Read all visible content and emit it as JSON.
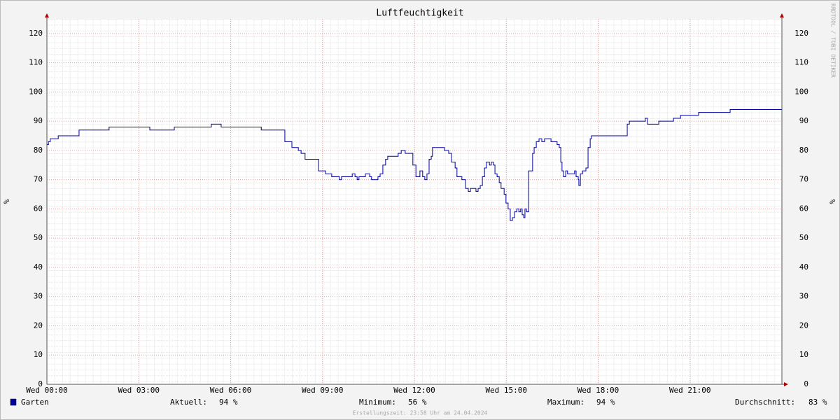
{
  "chart_data": {
    "type": "line",
    "title": "Luftfeuchtigkeit",
    "ylabel": "%",
    "y2label": "%",
    "watermark": "RRDTOOL / TOBI OETIKER",
    "footer": "Erstellungszeit: 23:58 Uhr am 24.04.2024",
    "step": "post",
    "grid": true,
    "xlim": [
      0,
      24
    ],
    "xticks": [
      {
        "value": 0,
        "label": "Wed 00:00"
      },
      {
        "value": 3,
        "label": "Wed 03:00"
      },
      {
        "value": 6,
        "label": "Wed 06:00"
      },
      {
        "value": 9,
        "label": "Wed 09:00"
      },
      {
        "value": 12,
        "label": "Wed 12:00"
      },
      {
        "value": 15,
        "label": "Wed 15:00"
      },
      {
        "value": 18,
        "label": "Wed 18:00"
      },
      {
        "value": 21,
        "label": "Wed 21:00"
      }
    ],
    "ylim": [
      0,
      125
    ],
    "yticks": [
      0,
      10,
      20,
      30,
      40,
      50,
      60,
      70,
      80,
      90,
      100,
      110,
      120
    ],
    "y2lim": [
      0,
      125
    ],
    "y2ticks": [
      0,
      10,
      20,
      30,
      40,
      50,
      60,
      70,
      80,
      90,
      100,
      110,
      120
    ],
    "x": [
      0,
      0.05,
      0.11,
      0.37,
      1.05,
      2.03,
      3.36,
      4.16,
      5.37,
      5.69,
      7.0,
      7.77,
      8.0,
      8.21,
      8.3,
      8.43,
      8.87,
      9.1,
      9.3,
      9.55,
      9.62,
      9.97,
      10.06,
      10.13,
      10.19,
      10.4,
      10.54,
      10.6,
      10.81,
      10.88,
      10.97,
      11.06,
      11.13,
      11.47,
      11.57,
      11.7,
      11.95,
      12.05,
      12.18,
      12.27,
      12.34,
      12.41,
      12.48,
      12.55,
      12.59,
      12.98,
      13.12,
      13.21,
      13.33,
      13.39,
      13.55,
      13.67,
      13.76,
      13.83,
      14.01,
      14.08,
      14.15,
      14.22,
      14.29,
      14.35,
      14.45,
      14.51,
      14.58,
      14.63,
      14.7,
      14.77,
      14.83,
      14.93,
      14.99,
      15.06,
      15.13,
      15.2,
      15.27,
      15.34,
      15.41,
      15.47,
      15.52,
      15.57,
      15.61,
      15.66,
      15.73,
      15.86,
      15.91,
      15.98,
      16.07,
      16.16,
      16.25,
      16.46,
      16.66,
      16.73,
      16.78,
      16.82,
      16.87,
      16.94,
      17.0,
      17.23,
      17.28,
      17.35,
      17.37,
      17.42,
      17.49,
      17.6,
      17.67,
      17.74,
      17.78,
      18.95,
      19.02,
      19.54,
      19.61,
      19.98,
      20.46,
      20.69,
      21.28,
      22.31,
      24
    ],
    "series": [
      {
        "name": "Garten",
        "color": "#00009c",
        "values": [
          82,
          83,
          84,
          85,
          87,
          88,
          87,
          88,
          89,
          88,
          87,
          83,
          81,
          80,
          79,
          77,
          73,
          72,
          71,
          70,
          71,
          72,
          71,
          70,
          71,
          72,
          71,
          70,
          71,
          72,
          75,
          77,
          78,
          79,
          80,
          79,
          75,
          71,
          73,
          71,
          70,
          72,
          77,
          78,
          81,
          80,
          79,
          76,
          74,
          71,
          70,
          67,
          66,
          67,
          66,
          67,
          68,
          71,
          74,
          76,
          75,
          76,
          75,
          72,
          71,
          69,
          67,
          65,
          62,
          60,
          56,
          57,
          59,
          60,
          59,
          60,
          58,
          57,
          60,
          59,
          73,
          79,
          81,
          83,
          84,
          83,
          84,
          83,
          82,
          81,
          76,
          73,
          71,
          73,
          72,
          73,
          71,
          70,
          68,
          72,
          73,
          74,
          81,
          84,
          85,
          89,
          90,
          91,
          89,
          90,
          91,
          92,
          93,
          94,
          94
        ]
      }
    ],
    "legend": {
      "stats": [
        {
          "label": "Aktuell:",
          "value": "94 %"
        },
        {
          "label": "Minimum:",
          "value": "56 %"
        },
        {
          "label": "Maximum:",
          "value": "94 %"
        },
        {
          "label": "Durchschnitt:",
          "value": "83 %"
        }
      ]
    }
  }
}
